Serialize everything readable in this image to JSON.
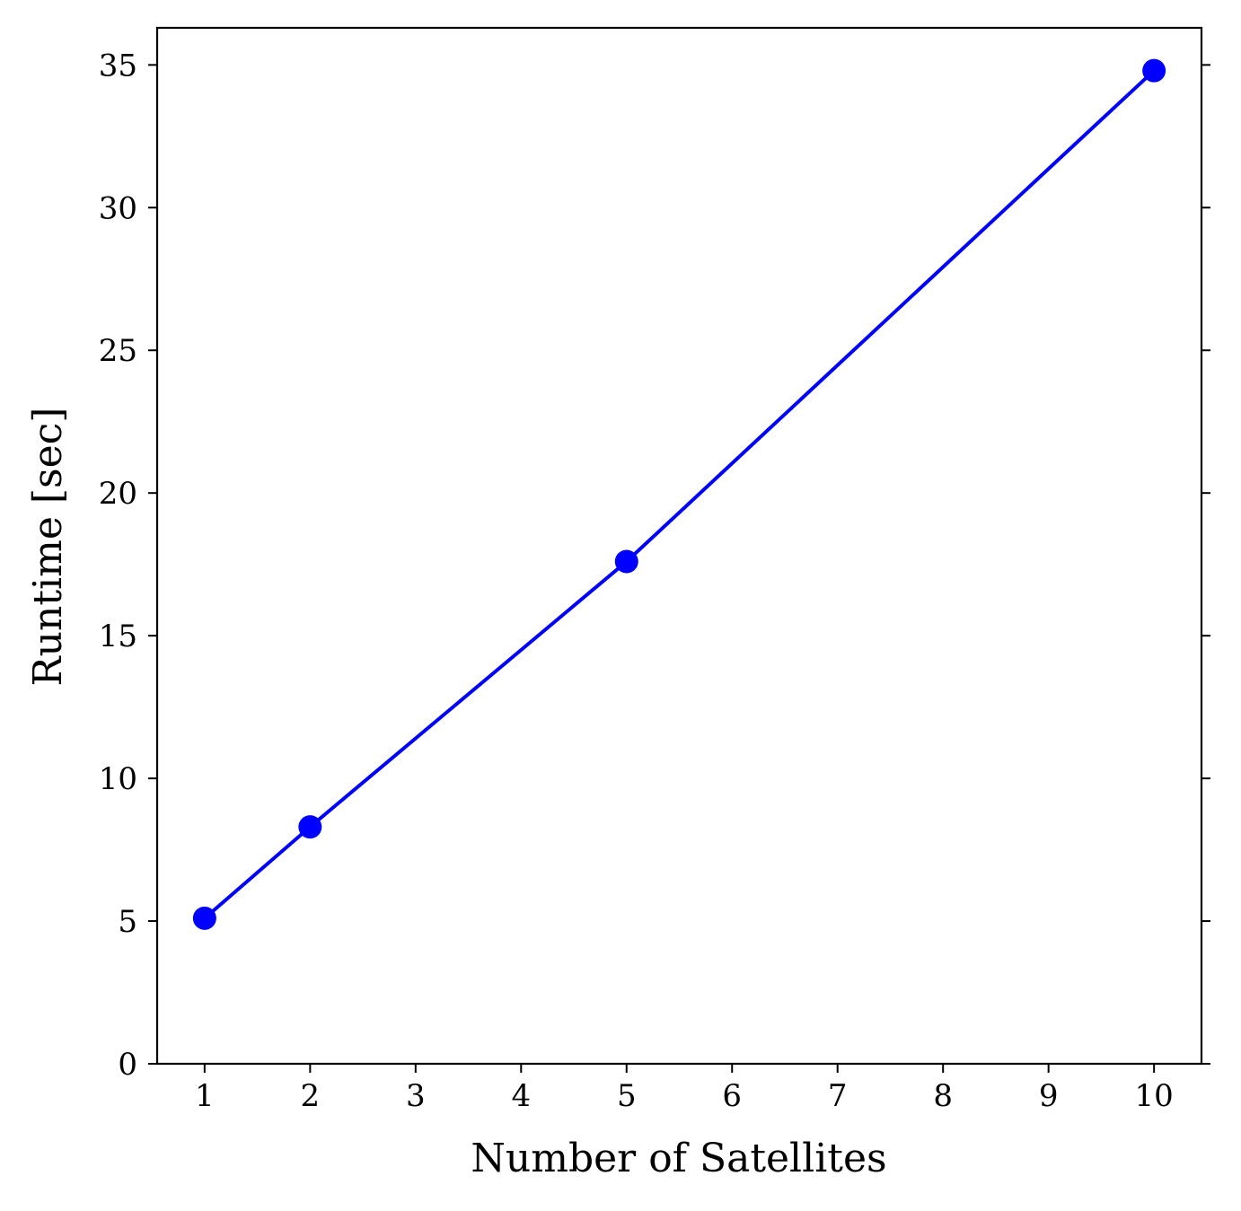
{
  "chart_data": {
    "type": "line",
    "title": "",
    "xlabel": "Number of Satellites",
    "ylabel": "Runtime [sec]",
    "xlim": [
      0.55,
      10.45
    ],
    "ylim": [
      0,
      36.3
    ],
    "xticks": [
      1,
      2,
      3,
      4,
      5,
      6,
      7,
      8,
      9,
      10
    ],
    "yticks": [
      0,
      5,
      10,
      15,
      20,
      25,
      30,
      35
    ],
    "grid": false,
    "legend": "none",
    "series": [
      {
        "color": "#0000ff",
        "marker": "circle",
        "points": [
          {
            "x": 1,
            "y": 5.1
          },
          {
            "x": 2,
            "y": 8.3
          },
          {
            "x": 5,
            "y": 17.6
          },
          {
            "x": 10,
            "y": 34.8
          }
        ]
      }
    ]
  }
}
